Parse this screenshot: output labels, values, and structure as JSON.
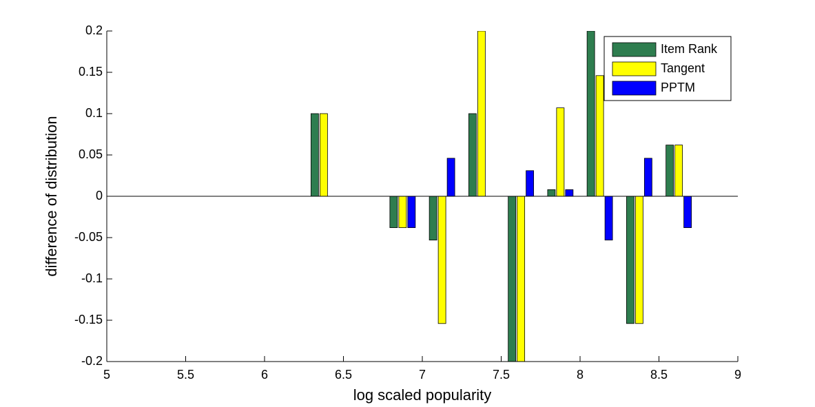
{
  "chart_data": {
    "type": "bar",
    "x_label": "log scaled popularity",
    "y_label": "difference of distribution",
    "x": [
      6.375,
      6.875,
      7.125,
      7.375,
      7.625,
      7.875,
      8.125,
      8.375,
      8.625
    ],
    "series": [
      {
        "name": "Item Rank",
        "color": "#2e7d4f",
        "values": [
          0.1,
          -0.038,
          -0.053,
          0.1,
          -0.2,
          0.008,
          0.2,
          -0.154,
          0.062
        ]
      },
      {
        "name": "Tangent",
        "color": "#ffff00",
        "values": [
          0.1,
          -0.038,
          -0.154,
          0.2,
          -0.2,
          0.107,
          0.146,
          -0.154,
          0.062
        ]
      },
      {
        "name": "PPTM",
        "color": "#0000ff",
        "values": [
          0,
          -0.038,
          0.046,
          0,
          0.031,
          0.008,
          -0.053,
          0.046,
          -0.038
        ]
      }
    ],
    "xlim": [
      5,
      9
    ],
    "xticks": [
      5,
      5.5,
      6,
      6.5,
      7,
      7.5,
      8,
      8.5,
      9
    ],
    "ylim": [
      -0.2,
      0.2
    ],
    "yticks": [
      -0.2,
      -0.15,
      -0.1,
      -0.05,
      0,
      0.05,
      0.1,
      0.15,
      0.2
    ],
    "grid": false,
    "legend": "upper right"
  }
}
